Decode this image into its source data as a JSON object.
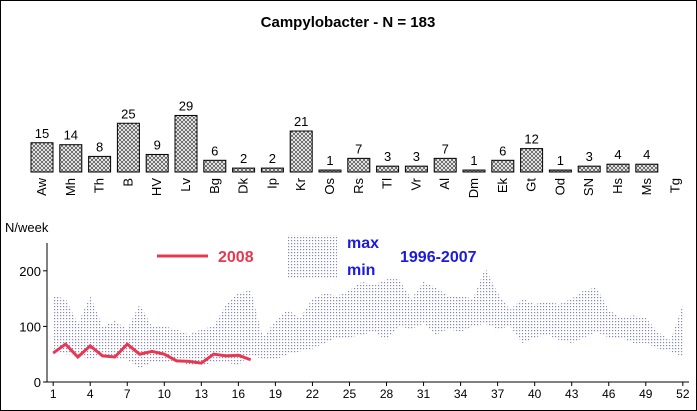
{
  "chart_data": [
    {
      "type": "bar",
      "title": "Campylobacter - N = 183",
      "categories": [
        "Aw",
        "Mh",
        "Th",
        "B",
        "HV",
        "Lv",
        "Bg",
        "Dk",
        "Ip",
        "Kr",
        "Os",
        "Rs",
        "Tl",
        "Vr",
        "Al",
        "Dm",
        "Ek",
        "Gt",
        "Od",
        "SN",
        "Hs",
        "Ms",
        "Tg"
      ],
      "values": [
        15,
        14,
        8,
        25,
        9,
        29,
        6,
        2,
        2,
        21,
        1,
        7,
        3,
        3,
        7,
        1,
        6,
        12,
        1,
        3,
        4,
        4,
        null
      ],
      "color": "#9a9a9a"
    },
    {
      "type": "line",
      "ylabel": "N/week",
      "x": [
        1,
        2,
        3,
        4,
        5,
        6,
        7,
        8,
        9,
        10,
        11,
        12,
        13,
        14,
        15,
        16,
        17,
        18,
        19,
        20,
        21,
        22,
        23,
        24,
        25,
        26,
        27,
        28,
        29,
        30,
        31,
        32,
        33,
        34,
        35,
        36,
        37,
        38,
        39,
        40,
        41,
        42,
        43,
        44,
        45,
        46,
        47,
        48,
        49,
        50,
        51,
        52
      ],
      "xlim": [
        0.5,
        52.5
      ],
      "xticks": [
        1,
        4,
        7,
        10,
        13,
        16,
        19,
        22,
        25,
        28,
        31,
        34,
        37,
        40,
        43,
        46,
        49,
        52
      ],
      "ylim": [
        0,
        250
      ],
      "yticks": [
        0,
        100,
        200
      ],
      "series": [
        {
          "name": "2008",
          "color": "#e8384f",
          "values": [
            52,
            68,
            45,
            65,
            47,
            45,
            68,
            50,
            55,
            50,
            38,
            37,
            34,
            50,
            47,
            48,
            40,
            null,
            null,
            null,
            null,
            null,
            null,
            null,
            null,
            null,
            null,
            null,
            null,
            null,
            null,
            null,
            null,
            null,
            null,
            null,
            null,
            null,
            null,
            null,
            null,
            null,
            null,
            null,
            null,
            null,
            null,
            null,
            null,
            null,
            null,
            null
          ]
        }
      ],
      "band": {
        "name": "1996-2007",
        "labels": [
          "max",
          "min"
        ],
        "color": "#7f86c8",
        "max": [
          155,
          150,
          105,
          155,
          100,
          110,
          95,
          140,
          100,
          100,
          95,
          85,
          95,
          100,
          140,
          160,
          165,
          80,
          110,
          130,
          115,
          150,
          160,
          155,
          165,
          180,
          175,
          185,
          185,
          150,
          180,
          170,
          155,
          155,
          150,
          205,
          160,
          130,
          150,
          140,
          145,
          140,
          150,
          165,
          170,
          130,
          115,
          120,
          115,
          90,
          75,
          140
        ],
        "min": [
          60,
          50,
          50,
          40,
          50,
          40,
          40,
          25,
          35,
          35,
          40,
          30,
          30,
          35,
          35,
          30,
          50,
          40,
          40,
          50,
          55,
          60,
          70,
          80,
          80,
          85,
          90,
          75,
          100,
          95,
          105,
          85,
          95,
          90,
          100,
          105,
          95,
          100,
          70,
          80,
          85,
          75,
          70,
          80,
          90,
          80,
          80,
          70,
          70,
          60,
          55,
          45
        ]
      }
    }
  ]
}
